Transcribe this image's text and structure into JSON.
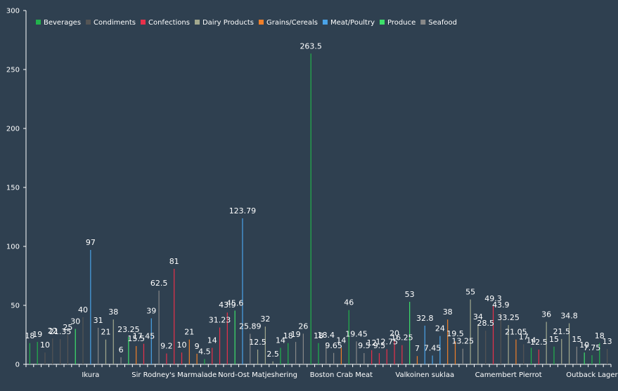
{
  "chart_data": {
    "type": "bar",
    "title": "",
    "xlabel": "",
    "ylabel": "",
    "ylim": [
      0,
      300
    ],
    "yticks": [
      0,
      50,
      100,
      150,
      200,
      250,
      300
    ],
    "grid": false,
    "legend_position": "top-left",
    "series": [
      {
        "name": "Beverages",
        "color": "#22b24c"
      },
      {
        "name": "Condiments",
        "color": "#555555"
      },
      {
        "name": "Confections",
        "color": "#e8304a"
      },
      {
        "name": "Dairy Products",
        "color": "#a3a98e"
      },
      {
        "name": "Grains/Cereals",
        "color": "#f07f29"
      },
      {
        "name": "Meat/Poultry",
        "color": "#4aa3e8"
      },
      {
        "name": "Produce",
        "color": "#3de06a"
      },
      {
        "name": "Seafood",
        "color": "#888888"
      }
    ],
    "category_labels": [
      {
        "index": 8,
        "text": "Ikura"
      },
      {
        "index": 19,
        "text": "Sir Rodney's Marmalade"
      },
      {
        "index": 30,
        "text": "Nord-Ost Matjeshering"
      },
      {
        "index": 41,
        "text": "Boston Crab Meat"
      },
      {
        "index": 52,
        "text": "Valkoinen suklaa"
      },
      {
        "index": 63,
        "text": "Camembert Pierrot"
      },
      {
        "index": 74,
        "text": "Outback Lager"
      }
    ],
    "bars": [
      {
        "value": 18,
        "label": "18",
        "series": "Beverages"
      },
      {
        "value": 19,
        "label": "19",
        "series": "Beverages"
      },
      {
        "value": 10,
        "label": "10",
        "series": "Condiments"
      },
      {
        "value": 22,
        "label": "22",
        "series": "Condiments"
      },
      {
        "value": 21.35,
        "label": "21.35",
        "series": "Condiments"
      },
      {
        "value": 25,
        "label": "25",
        "series": "Condiments"
      },
      {
        "value": 30,
        "label": "30",
        "series": "Produce"
      },
      {
        "value": 40,
        "label": "40",
        "series": "Condiments"
      },
      {
        "value": 97,
        "label": "97",
        "series": "Meat/Poultry"
      },
      {
        "value": 31,
        "label": "31",
        "series": "Seafood"
      },
      {
        "value": 21,
        "label": "21",
        "series": "Dairy Products"
      },
      {
        "value": 38,
        "label": "38",
        "series": "Dairy Products"
      },
      {
        "value": 6,
        "label": "6",
        "series": "Seafood"
      },
      {
        "value": 23.25,
        "label": "23.25",
        "series": "Produce"
      },
      {
        "value": 15.5,
        "label": "15.5",
        "series": "Grains/Cereals"
      },
      {
        "value": 17.45,
        "label": "17.45",
        "series": "Confections"
      },
      {
        "value": 39,
        "label": "39",
        "series": "Meat/Poultry"
      },
      {
        "value": 62.5,
        "label": "62.5",
        "series": "Seafood"
      },
      {
        "value": 9.2,
        "label": "9.2",
        "series": "Confections"
      },
      {
        "value": 81,
        "label": "81",
        "series": "Confections"
      },
      {
        "value": 10,
        "label": "10",
        "series": "Confections"
      },
      {
        "value": 21,
        "label": "21",
        "series": "Grains/Cereals"
      },
      {
        "value": 9,
        "label": "9",
        "series": "Grains/Cereals"
      },
      {
        "value": 4.5,
        "label": "4.5",
        "series": "Beverages"
      },
      {
        "value": 14,
        "label": "14",
        "series": "Confections"
      },
      {
        "value": 31.23,
        "label": "31.23",
        "series": "Confections"
      },
      {
        "value": 43.9,
        "label": "43.9",
        "series": "Confections"
      },
      {
        "value": 45.6,
        "label": "45.6",
        "series": "Produce"
      },
      {
        "value": 123.79,
        "label": "123.79",
        "series": "Meat/Poultry"
      },
      {
        "value": 25.89,
        "label": "25.89",
        "series": "Seafood"
      },
      {
        "value": 12.5,
        "label": "12.5",
        "series": "Dairy Products"
      },
      {
        "value": 32,
        "label": "32",
        "series": "Dairy Products"
      },
      {
        "value": 2.5,
        "label": "2.5",
        "series": "Dairy Products"
      },
      {
        "value": 14,
        "label": "14",
        "series": "Beverages"
      },
      {
        "value": 18,
        "label": "18",
        "series": "Beverages"
      },
      {
        "value": 19,
        "label": "19",
        "series": "Seafood"
      },
      {
        "value": 26,
        "label": "26",
        "series": "Seafood"
      },
      {
        "value": 263.5,
        "label": "263.5",
        "series": "Beverages"
      },
      {
        "value": 18,
        "label": "18",
        "series": "Beverages"
      },
      {
        "value": 18.4,
        "label": "18.4",
        "series": "Seafood"
      },
      {
        "value": 9.65,
        "label": "9.65",
        "series": "Seafood"
      },
      {
        "value": 14,
        "label": "14",
        "series": "Grains/Cereals"
      },
      {
        "value": 46,
        "label": "46",
        "series": "Beverages"
      },
      {
        "value": 19.45,
        "label": "19.45",
        "series": "Seafood"
      },
      {
        "value": 9.5,
        "label": "9.5",
        "series": "Seafood"
      },
      {
        "value": 12,
        "label": "12",
        "series": "Confections"
      },
      {
        "value": 9.5,
        "label": "9.5",
        "series": "Confections"
      },
      {
        "value": 12.75,
        "label": "12.75",
        "series": "Confections"
      },
      {
        "value": 20,
        "label": "20",
        "series": "Confections"
      },
      {
        "value": 16.25,
        "label": "16.25",
        "series": "Confections"
      },
      {
        "value": 53,
        "label": "53",
        "series": "Produce"
      },
      {
        "value": 7,
        "label": "7",
        "series": "Grains/Cereals"
      },
      {
        "value": 32.8,
        "label": "32.8",
        "series": "Meat/Poultry"
      },
      {
        "value": 7.45,
        "label": "7.45",
        "series": "Meat/Poultry"
      },
      {
        "value": 24,
        "label": "24",
        "series": "Meat/Poultry"
      },
      {
        "value": 38,
        "label": "38",
        "series": "Grains/Cereals"
      },
      {
        "value": 19.5,
        "label": "19.5",
        "series": "Grains/Cereals"
      },
      {
        "value": 13.25,
        "label": "13.25",
        "series": "Seafood"
      },
      {
        "value": 55,
        "label": "55",
        "series": "Dairy Products"
      },
      {
        "value": 34,
        "label": "34",
        "series": "Dairy Products"
      },
      {
        "value": 28.5,
        "label": "28.5",
        "series": "Condiments"
      },
      {
        "value": 49.3,
        "label": "49.3",
        "series": "Confections"
      },
      {
        "value": 43.9,
        "label": "43.9",
        "series": "Condiments"
      },
      {
        "value": 33.25,
        "label": "33.25",
        "series": "Dairy Products"
      },
      {
        "value": 21.05,
        "label": "21.05",
        "series": "Grains/Cereals"
      },
      {
        "value": 17,
        "label": "17",
        "series": "Condiments"
      },
      {
        "value": 14,
        "label": "14",
        "series": "Beverages"
      },
      {
        "value": 12.5,
        "label": "12.5",
        "series": "Confections"
      },
      {
        "value": 36,
        "label": "36",
        "series": "Dairy Products"
      },
      {
        "value": 15,
        "label": "15",
        "series": "Beverages"
      },
      {
        "value": 21.5,
        "label": "21.5",
        "series": "Dairy Products"
      },
      {
        "value": 34.8,
        "label": "34.8",
        "series": "Dairy Products"
      },
      {
        "value": 15,
        "label": "15",
        "series": "Seafood"
      },
      {
        "value": 10,
        "label": "10",
        "series": "Produce"
      },
      {
        "value": 7.75,
        "label": "7.75",
        "series": "Beverages"
      },
      {
        "value": 18,
        "label": "18",
        "series": "Beverages"
      },
      {
        "value": 13,
        "label": "13",
        "series": "Condiments"
      }
    ]
  }
}
